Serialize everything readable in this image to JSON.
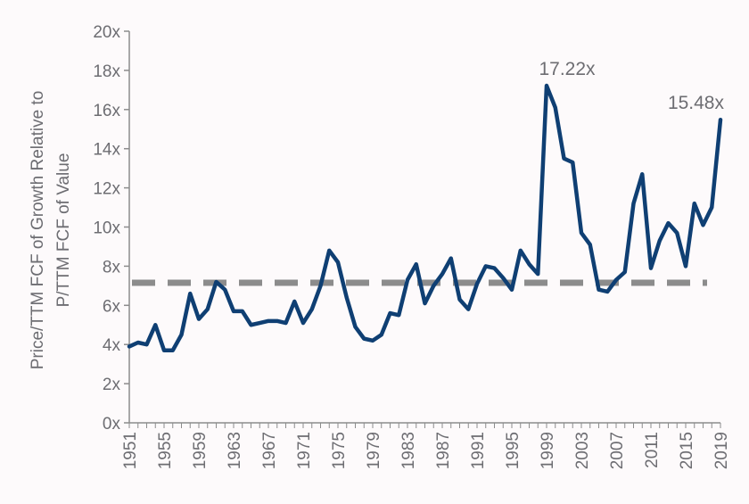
{
  "chart_data": {
    "type": "line",
    "title": "",
    "xlabel": "",
    "ylabel_lines": [
      "Price/TTM FCF of Growth Relative to",
      "P/TTM FCF of Value"
    ],
    "ylim": [
      0,
      20
    ],
    "yticks": [
      "0x",
      "2x",
      "4x",
      "6x",
      "8x",
      "10x",
      "12x",
      "14x",
      "16x",
      "18x",
      "20x"
    ],
    "xlim": [
      1951,
      2019
    ],
    "xticks": [
      "1951",
      "1955",
      "1959",
      "1963",
      "1967",
      "1971",
      "1975",
      "1979",
      "1983",
      "1987",
      "1991",
      "1995",
      "1999",
      "2003",
      "2007",
      "2011",
      "2015",
      "2019"
    ],
    "grid": false,
    "legend": "none",
    "colors": {
      "series": "#0f3f73",
      "average_line": "#8c8c8c",
      "axis": "#8c8c8c",
      "text": "#6d6d72"
    },
    "average_line": {
      "value": 7.15
    },
    "series": [
      {
        "x": [
          1951,
          1952,
          1953,
          1954,
          1955,
          1956,
          1957,
          1958,
          1959,
          1960,
          1961,
          1962,
          1963,
          1964,
          1965,
          1966,
          1967,
          1968,
          1969,
          1970,
          1971,
          1972,
          1973,
          1974,
          1975,
          1976,
          1977,
          1978,
          1979,
          1980,
          1981,
          1982,
          1983,
          1984,
          1985,
          1986,
          1987,
          1988,
          1989,
          1990,
          1991,
          1992,
          1993,
          1994,
          1995,
          1996,
          1997,
          1998,
          1999,
          2000,
          2001,
          2002,
          2003,
          2004,
          2005,
          2006,
          2007,
          2008,
          2009,
          2010,
          2011,
          2012,
          2013,
          2014,
          2015,
          2016,
          2017,
          2018,
          2019
        ],
        "values": [
          3.9,
          4.1,
          4.0,
          5.0,
          3.7,
          3.7,
          4.5,
          6.6,
          5.3,
          5.8,
          7.2,
          6.8,
          5.7,
          5.7,
          5.0,
          5.1,
          5.2,
          5.2,
          5.1,
          6.2,
          5.1,
          5.8,
          7.0,
          8.8,
          8.2,
          6.4,
          4.9,
          4.3,
          4.2,
          4.5,
          5.6,
          5.5,
          7.3,
          8.1,
          6.1,
          7.0,
          7.6,
          8.4,
          6.3,
          5.8,
          7.1,
          8.0,
          7.9,
          7.4,
          6.8,
          8.8,
          8.1,
          7.6,
          17.22,
          16.1,
          13.5,
          13.3,
          9.7,
          9.1,
          6.8,
          6.7,
          7.3,
          7.7,
          11.2,
          12.7,
          7.9,
          9.3,
          10.2,
          9.7,
          8.0,
          11.2,
          10.1,
          11.0,
          15.48
        ]
      }
    ],
    "annotations": [
      {
        "x": 1999,
        "y": 17.22,
        "text": "17.22x"
      },
      {
        "x": 2019,
        "y": 15.48,
        "text": "15.48x"
      }
    ]
  }
}
